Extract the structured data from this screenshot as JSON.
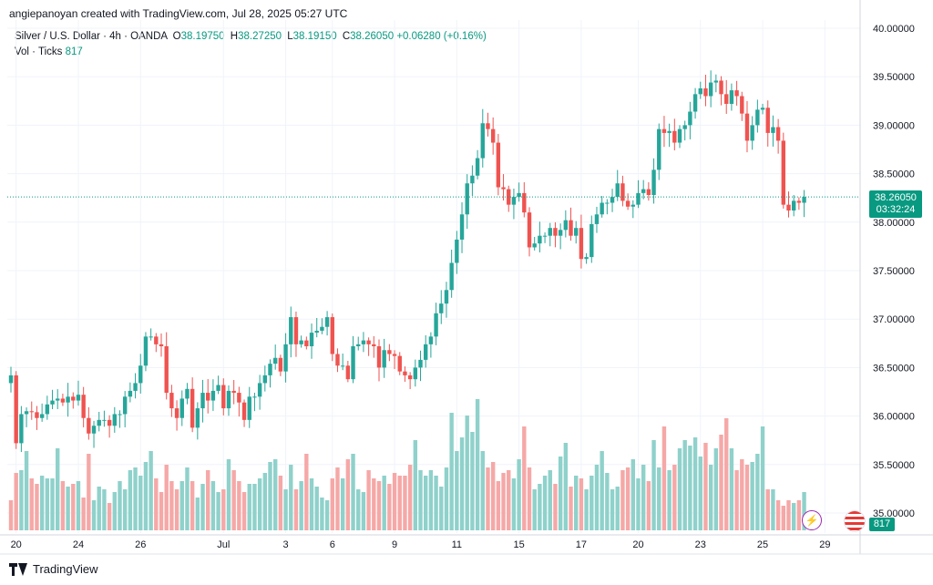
{
  "credit": "angiepanoyan created with TradingView.com, Jul 28, 2025 05:27 UTC",
  "legend": {
    "symbol": "Silver / U.S. Dollar · 4h · OANDA",
    "o_label": "O",
    "o": "38.19750",
    "h_label": "H",
    "h": "38.27250",
    "l_label": "L",
    "l": "38.19150",
    "c_label": "C",
    "c": "38.26050",
    "change": "+0.06280 (+0.16%)",
    "vol_label": "Vol · Ticks",
    "vol": "817"
  },
  "price_badge": {
    "price": "38.26050",
    "countdown": "03:32:24"
  },
  "vol_badge": "817",
  "footer": {
    "brand": "TradingView"
  },
  "icons": {
    "bolt": "lightning-icon",
    "flag": "us-flag-icon"
  },
  "colors": {
    "up": "#26a69a",
    "down": "#ef5350",
    "vol_up": "#8fd1cb",
    "vol_down": "#f5a8a7",
    "accent": "#089981"
  },
  "chart_data": {
    "type": "candlestick",
    "symbol": "Silver / U.S. Dollar",
    "interval": "4h",
    "ylim": [
      34.85,
      40.0
    ],
    "y_ticks": [
      "40.00000",
      "39.50000",
      "39.00000",
      "38.50000",
      "38.00000",
      "37.50000",
      "37.00000",
      "36.50000",
      "36.00000",
      "35.50000",
      "35.00000"
    ],
    "y_tick_values": [
      40.0,
      39.5,
      39.0,
      38.5,
      38.0,
      37.5,
      37.0,
      36.5,
      36.0,
      35.5,
      35.0
    ],
    "x_ticks": [
      {
        "label": "20",
        "index": 1
      },
      {
        "label": "24",
        "index": 13
      },
      {
        "label": "26",
        "index": 25
      },
      {
        "label": "Jul",
        "index": 41
      },
      {
        "label": "3",
        "index": 53
      },
      {
        "label": "6",
        "index": 62
      },
      {
        "label": "9",
        "index": 74
      },
      {
        "label": "11",
        "index": 86
      },
      {
        "label": "15",
        "index": 98
      },
      {
        "label": "17",
        "index": 110
      },
      {
        "label": "20",
        "index": 121
      },
      {
        "label": "23",
        "index": 133
      },
      {
        "label": "25",
        "index": 145
      },
      {
        "label": "29",
        "index": 157
      }
    ],
    "last_price": 38.2605,
    "closes": [
      36.42,
      35.72,
      36.02,
      36.05,
      36.04,
      35.98,
      36.02,
      36.12,
      36.16,
      36.18,
      36.14,
      36.2,
      36.16,
      36.22,
      35.98,
      35.82,
      35.9,
      35.96,
      35.96,
      35.9,
      36.02,
      36.02,
      36.2,
      36.26,
      36.34,
      36.52,
      36.82,
      36.82,
      36.74,
      36.72,
      36.24,
      36.08,
      35.98,
      36.18,
      36.28,
      35.88,
      36.08,
      36.24,
      36.16,
      36.26,
      36.32,
      36.08,
      36.26,
      36.24,
      36.14,
      35.96,
      36.2,
      36.2,
      36.34,
      36.42,
      36.54,
      36.6,
      36.46,
      36.74,
      37.02,
      36.74,
      36.78,
      36.72,
      36.86,
      36.88,
      36.92,
      37.02,
      36.64,
      36.52,
      36.52,
      36.38,
      36.72,
      36.74,
      36.78,
      36.74,
      36.72,
      36.5,
      36.68,
      36.64,
      36.62,
      36.46,
      36.42,
      36.38,
      36.5,
      36.58,
      36.74,
      36.82,
      37.06,
      37.16,
      37.3,
      37.58,
      37.82,
      38.08,
      38.4,
      38.48,
      38.66,
      39.02,
      38.96,
      38.82,
      38.36,
      38.34,
      38.18,
      38.26,
      38.3,
      38.1,
      37.74,
      37.78,
      37.86,
      37.86,
      37.94,
      37.86,
      37.92,
      38.02,
      37.86,
      37.94,
      37.62,
      37.64,
      37.98,
      38.08,
      38.2,
      38.2,
      38.26,
      38.4,
      38.22,
      38.16,
      38.18,
      38.3,
      38.34,
      38.28,
      38.54,
      38.96,
      38.92,
      38.94,
      38.82,
      38.96,
      39.0,
      39.14,
      39.32,
      39.38,
      39.3,
      39.44,
      39.46,
      39.32,
      39.22,
      39.36,
      39.3,
      39.12,
      38.84,
      39.0,
      39.16,
      39.18,
      38.92,
      38.98,
      38.84,
      38.18,
      38.12,
      38.22,
      38.2,
      38.26
    ],
    "volumes": [
      110,
      210,
      220,
      290,
      190,
      170,
      200,
      190,
      190,
      300,
      180,
      160,
      170,
      180,
      120,
      280,
      110,
      160,
      150,
      100,
      140,
      180,
      150,
      220,
      230,
      200,
      250,
      290,
      190,
      140,
      240,
      180,
      150,
      180,
      230,
      180,
      120,
      170,
      220,
      180,
      140,
      150,
      260,
      220,
      180,
      140,
      170,
      170,
      190,
      210,
      250,
      260,
      200,
      150,
      240,
      150,
      180,
      280,
      190,
      160,
      120,
      110,
      190,
      230,
      190,
      260,
      280,
      150,
      140,
      220,
      190,
      180,
      200,
      170,
      210,
      200,
      200,
      240,
      330,
      220,
      200,
      220,
      200,
      160,
      230,
      430,
      290,
      340,
      420,
      360,
      480,
      290,
      230,
      250,
      180,
      210,
      220,
      190,
      260,
      380,
      230,
      150,
      170,
      200,
      220,
      170,
      270,
      320,
      160,
      200,
      190,
      150,
      200,
      240,
      290,
      210,
      150,
      160,
      220,
      230,
      260,
      190,
      240,
      180,
      330,
      230,
      380,
      220,
      240,
      300,
      330,
      310,
      340,
      270,
      320,
      240,
      300,
      350,
      410,
      300,
      220,
      260,
      240,
      250,
      280,
      380,
      150,
      150,
      110,
      90,
      110,
      100,
      110,
      140
    ]
  }
}
